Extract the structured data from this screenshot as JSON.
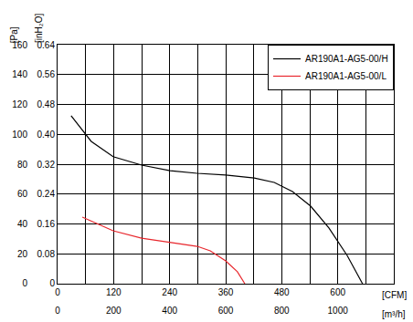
{
  "chart_data": {
    "type": "line",
    "x_label": "[CFM]",
    "x2_label": "[m³/h]",
    "y_label": "[Pa]",
    "y2_label": "[inH₂O]",
    "xlim": [
      0,
      720
    ],
    "xticks": [
      0,
      120,
      240,
      360,
      480,
      600
    ],
    "x2lim": [
      0,
      1200
    ],
    "x2ticks": [
      0,
      200,
      400,
      600,
      800,
      1000
    ],
    "ylim": [
      0,
      160
    ],
    "yticks": [
      0,
      20,
      40,
      60,
      80,
      100,
      120,
      140,
      160
    ],
    "y2lim": [
      0,
      0.64
    ],
    "y2ticks": [
      0,
      0.08,
      0.16,
      0.24,
      0.32,
      {
        "value": 0.4,
        "label": "0.40"
      },
      0.48,
      0.56,
      0.64
    ],
    "grid": true,
    "legend": "upper right",
    "series": [
      {
        "name": "AR190A1-AG5-00/H",
        "color": "#000000",
        "x": [
          29,
          72,
          119,
          180,
          241,
          299,
          360,
          421,
          464,
          503,
          542,
          581,
          620,
          653
        ],
        "values": [
          112.4,
          95.3,
          85,
          79.4,
          75.7,
          73.9,
          72.7,
          70.8,
          67.8,
          61.7,
          51.9,
          37.3,
          18.9,
          0
        ]
      },
      {
        "name": "AR190A1-AG5-00/L",
        "color": "#e8272d",
        "x": [
          53,
          119,
          180,
          241,
          299,
          327,
          360,
          385,
          401
        ],
        "values": [
          44.6,
          35.4,
          30.5,
          27.5,
          25,
          22,
          15.3,
          8,
          0
        ]
      }
    ]
  }
}
